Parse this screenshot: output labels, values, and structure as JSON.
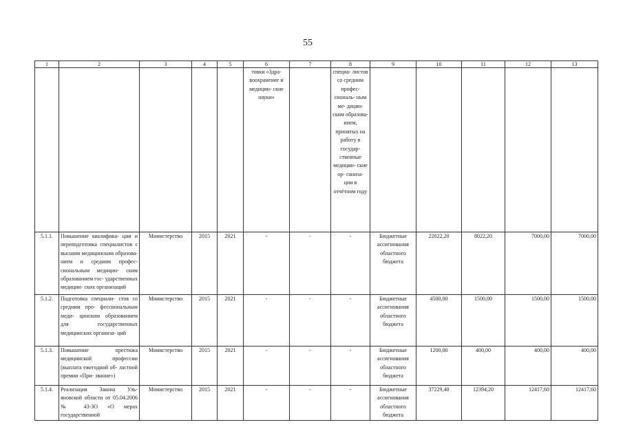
{
  "page_number": "55",
  "table": {
    "header": [
      "1",
      "2",
      "3",
      "4",
      "5",
      "6",
      "7",
      "8",
      "9",
      "10",
      "11",
      "12",
      "13"
    ],
    "continuation_row": {
      "col6": "товки «Здра- воохранение и медицин- ские науки»",
      "col8": "специа- листов со средним профес- сиональ- ным ме- дицин- ским образова- нием, принятых на работу в государ- ственные медицин- ские ор- ганиза- ции в отчётном году"
    },
    "rows": [
      {
        "num": "5.1.1.",
        "name": "Повышение квалифика- ции и переподготовка специалистов с высшим медицинским образова- нием и средним профес- сиональным медицин- ским образованием гос- ударственных медицин- ских организаций",
        "executor": "Министерство",
        "start": "2015",
        "end": "2021",
        "c6": "-",
        "c7": "-",
        "c8": "-",
        "source": "Бюджетные ассигнования областного бюджета",
        "c10": "22022,20",
        "c11": "8022,20",
        "c12": "7000,00",
        "c13": "7000,00"
      },
      {
        "num": "5.1.2.",
        "name": "Подготовка специали- стов со средним про- фессиональным меди- цинским образованием для государственных медицинских организа- ций",
        "executor": "Министерство",
        "start": "2015",
        "end": "2021",
        "c6": "-",
        "c7": "-",
        "c8": "-",
        "source": "Бюджетные ассигнования областного бюджета",
        "c10": "4500,00",
        "c11": "1500,00",
        "c12": "1500,00",
        "c13": "1500,00"
      },
      {
        "num": "5.1.3.",
        "name": "Повышение престижа медицинской профессии (выплата ежегодной об- ластной премии «При- звание»)",
        "executor": "Министерство",
        "start": "2015",
        "end": "2021",
        "c6": "-",
        "c7": "-",
        "c8": "-",
        "source": "Бюджетные ассигнования областного бюджета",
        "c10": "1200,00",
        "c11": "400,00",
        "c12": "400,00",
        "c13": "400,00"
      },
      {
        "num": "5.1.4.",
        "name": "Реализация Закона Уль- яновской области от 05.04.2006 № 43-ЗО «О мерах государственной",
        "executor": "Министерство",
        "start": "2015",
        "end": "2021",
        "c6": "-",
        "c7": "-",
        "c8": "-",
        "source": "Бюджетные ассигнования областного бюджета",
        "c10": "37229,40",
        "c11": "12394,20",
        "c12": "12417,60",
        "c13": "12417,60"
      }
    ]
  }
}
